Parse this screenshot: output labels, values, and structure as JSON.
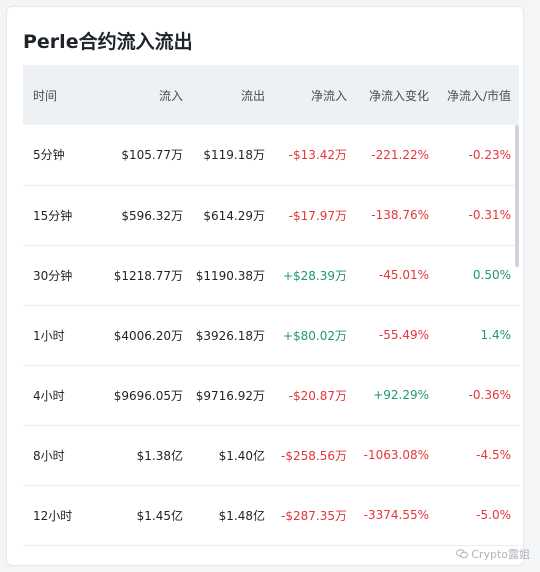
{
  "title": "Perle合约流入流出",
  "columns": [
    "时间",
    "流入",
    "流出",
    "净流入",
    "净流入变化",
    "净流入/市值"
  ],
  "rows": [
    {
      "time": "5分钟",
      "inflow": "$105.77万",
      "outflow": "$119.18万",
      "net": "-$13.42万",
      "net_dir": "neg",
      "change": "-221.22%",
      "change_dir": "neg",
      "mcap": "-0.23%",
      "mcap_dir": "neg"
    },
    {
      "time": "15分钟",
      "inflow": "$596.32万",
      "outflow": "$614.29万",
      "net": "-$17.97万",
      "net_dir": "neg",
      "change": "-138.76%",
      "change_dir": "neg",
      "mcap": "-0.31%",
      "mcap_dir": "neg"
    },
    {
      "time": "30分钟",
      "inflow": "$1218.77万",
      "outflow": "$1190.38万",
      "net": "+$28.39万",
      "net_dir": "pos",
      "change": "-45.01%",
      "change_dir": "neg",
      "mcap": "0.50%",
      "mcap_dir": "pos"
    },
    {
      "time": "1小时",
      "inflow": "$4006.20万",
      "outflow": "$3926.18万",
      "net": "+$80.02万",
      "net_dir": "pos",
      "change": "-55.49%",
      "change_dir": "neg",
      "mcap": "1.4%",
      "mcap_dir": "pos"
    },
    {
      "time": "4小时",
      "inflow": "$9696.05万",
      "outflow": "$9716.92万",
      "net": "-$20.87万",
      "net_dir": "neg",
      "change": "+92.29%",
      "change_dir": "pos",
      "mcap": "-0.36%",
      "mcap_dir": "neg"
    },
    {
      "time": "8小时",
      "inflow": "$1.38亿",
      "outflow": "$1.40亿",
      "net": "-$258.56万",
      "net_dir": "neg",
      "change": "-1063.08%",
      "change_dir": "neg",
      "mcap": "-4.5%",
      "mcap_dir": "neg"
    },
    {
      "time": "12小时",
      "inflow": "$1.45亿",
      "outflow": "$1.48亿",
      "net": "-$287.35万",
      "net_dir": "neg",
      "change": "-3374.55%",
      "change_dir": "neg",
      "mcap": "-5.0%",
      "mcap_dir": "neg"
    }
  ],
  "watermark": "Crypto露姐",
  "colors": {
    "positive": "#1f9a6a",
    "negative": "#e5363a",
    "header_bg": "#eef1f4"
  },
  "icons": {
    "watermark": "wechat-icon"
  }
}
